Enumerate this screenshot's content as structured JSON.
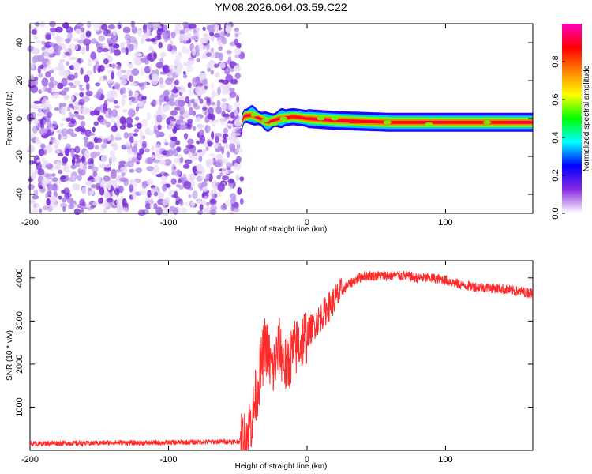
{
  "title": "YM08.2026.064.03.59.C22",
  "chart_data": [
    {
      "type": "heatmap",
      "xlabel": "Height of straight line (km)",
      "ylabel": "Frequency (Hz)",
      "xlim": [
        -200,
        163
      ],
      "ylim": [
        -50,
        50
      ],
      "x_ticks": [
        -200,
        -100,
        0,
        100
      ],
      "y_ticks": [
        -40,
        -20,
        0,
        20,
        40
      ],
      "grid": false,
      "colorbar": {
        "label": "Normalized spectral amplitude",
        "range": [
          0,
          1
        ],
        "ticks": [
          "0.0",
          "0.2",
          "0.4",
          "0.6",
          "0.8"
        ],
        "colors": [
          "#ffffff",
          "#8a2be2",
          "#0000ff",
          "#00ffff",
          "#00ff00",
          "#ffff00",
          "#ff8000",
          "#ff0000",
          "#ff00c0"
        ]
      },
      "regions": [
        {
          "name": "noise",
          "x_range": [
            -200,
            -47
          ],
          "freq_range": [
            -50,
            50
          ],
          "amplitude_range": [
            0,
            0.35
          ]
        },
        {
          "name": "signal",
          "x_range": [
            -47,
            163
          ],
          "centre_freq_hz": [
            [
              -46,
              1
            ],
            [
              -40,
              2
            ],
            [
              -34,
              0
            ],
            [
              -28,
              -2
            ],
            [
              -20,
              0
            ],
            [
              -10,
              1
            ],
            [
              0,
              0
            ],
            [
              20,
              -1
            ],
            [
              60,
              -2
            ],
            [
              120,
              -2
            ],
            [
              163,
              -2
            ]
          ],
          "peak_amplitude": 1.0
        }
      ]
    },
    {
      "type": "line",
      "xlabel": "Height of straight line (km)",
      "ylabel": "SNR (10 * v/v)",
      "xlim": [
        -200,
        163
      ],
      "ylim": [
        0,
        4400
      ],
      "x_ticks": [
        -200,
        -100,
        0,
        100
      ],
      "y_ticks": [
        1000,
        2000,
        3000,
        4000
      ],
      "grid": false,
      "series": [
        {
          "color": "#ff2a2a",
          "points": [
            [
              -200,
              150
            ],
            [
              -180,
              170
            ],
            [
              -160,
              160
            ],
            [
              -140,
              180
            ],
            [
              -120,
              170
            ],
            [
              -100,
              180
            ],
            [
              -80,
              190
            ],
            [
              -60,
              200
            ],
            [
              -50,
              200
            ],
            [
              -45,
              230
            ],
            [
              -40,
              700
            ],
            [
              -35,
              1600
            ],
            [
              -30,
              2500
            ],
            [
              -25,
              1800
            ],
            [
              -20,
              2400
            ],
            [
              -15,
              1900
            ],
            [
              -10,
              2300
            ],
            [
              -5,
              2500
            ],
            [
              0,
              2700
            ],
            [
              10,
              3100
            ],
            [
              20,
              3500
            ],
            [
              30,
              3850
            ],
            [
              40,
              4050
            ],
            [
              50,
              4050
            ],
            [
              70,
              4050
            ],
            [
              80,
              4000
            ],
            [
              90,
              4000
            ],
            [
              100,
              3950
            ],
            [
              110,
              3850
            ],
            [
              120,
              3800
            ],
            [
              140,
              3750
            ],
            [
              150,
              3700
            ],
            [
              163,
              3650
            ]
          ]
        }
      ]
    }
  ]
}
